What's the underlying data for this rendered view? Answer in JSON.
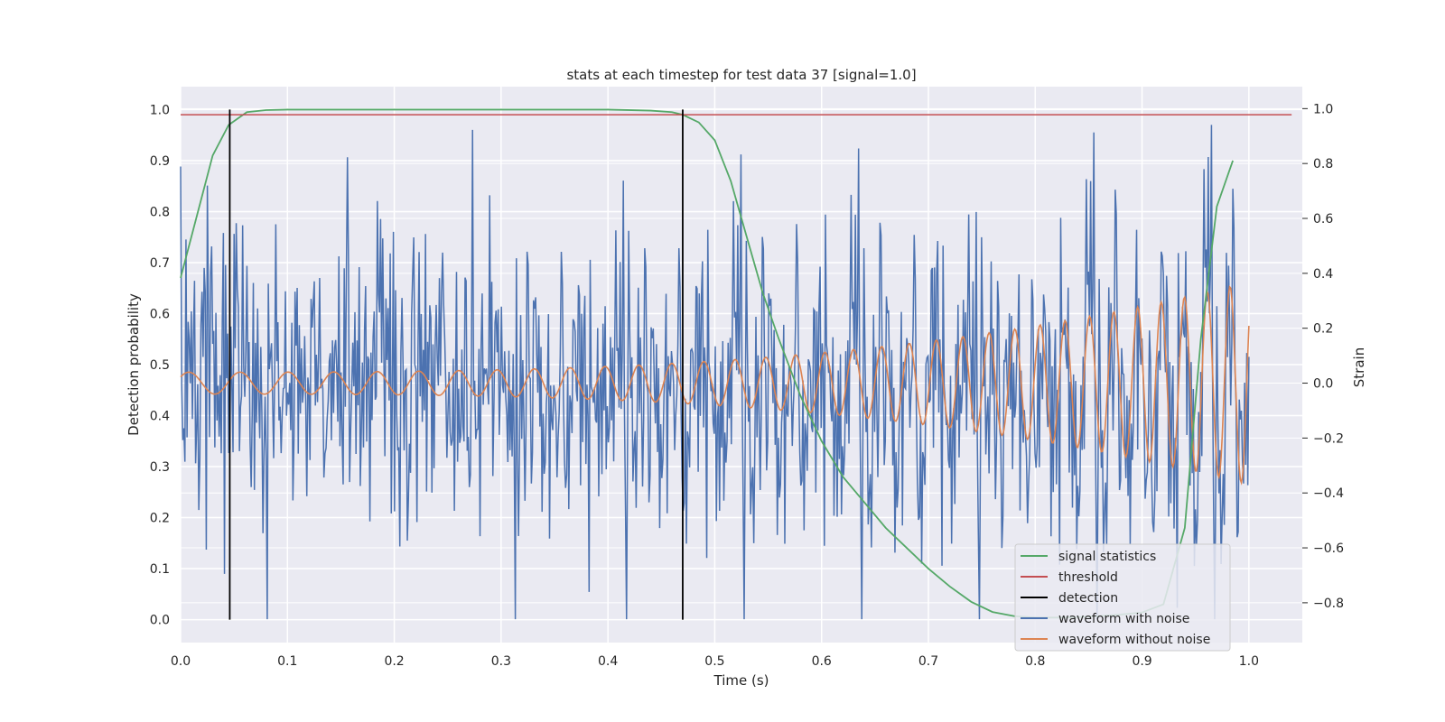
{
  "chart_data": {
    "type": "line",
    "title": "stats at each timestep for test data 37 [signal=1.0]",
    "xlabel": "Time (s)",
    "ylabel_left": "Detection probability",
    "ylabel_right": "Strain",
    "xlim": [
      0.0,
      1.05
    ],
    "ylim_left": [
      -0.045,
      1.045
    ],
    "ylim_right": [
      -0.945,
      1.08
    ],
    "x_ticks": [
      0.0,
      0.1,
      0.2,
      0.3,
      0.4,
      0.5,
      0.6,
      0.7,
      0.8,
      0.9,
      1.0
    ],
    "x_tick_labels": [
      "0.0",
      "0.1",
      "0.2",
      "0.3",
      "0.4",
      "0.5",
      "0.6",
      "0.7",
      "0.8",
      "0.9",
      "1.0"
    ],
    "y_left_ticks": [
      0.0,
      0.1,
      0.2,
      0.3,
      0.4,
      0.5,
      0.6,
      0.7,
      0.8,
      0.9,
      1.0
    ],
    "y_left_tick_labels": [
      "0.0",
      "0.1",
      "0.2",
      "0.3",
      "0.4",
      "0.5",
      "0.6",
      "0.7",
      "0.8",
      "0.9",
      "1.0"
    ],
    "y_right_ticks": [
      -0.8,
      -0.6,
      -0.4,
      -0.2,
      0.0,
      0.2,
      0.4,
      0.6,
      0.8,
      1.0
    ],
    "y_right_tick_labels": [
      "−0.8",
      "−0.6",
      "−0.4",
      "−0.2",
      "0.0",
      "0.2",
      "0.4",
      "0.6",
      "0.8",
      "1.0"
    ],
    "grid": true,
    "legend_position": "bottom-right",
    "series": [
      {
        "name": "signal statistics",
        "axis": "left",
        "color": "#55a868",
        "x": [
          0.0,
          0.015,
          0.03,
          0.045,
          0.062,
          0.08,
          0.1,
          0.2,
          0.3,
          0.4,
          0.44,
          0.46,
          0.47,
          0.485,
          0.5,
          0.515,
          0.53,
          0.545,
          0.56,
          0.58,
          0.6,
          0.62,
          0.64,
          0.66,
          0.68,
          0.7,
          0.72,
          0.74,
          0.76,
          0.78,
          0.8,
          0.82,
          0.84,
          0.86,
          0.88,
          0.9,
          0.92,
          0.94,
          0.955,
          0.97,
          0.985
        ],
        "y": [
          0.67,
          0.79,
          0.91,
          0.97,
          0.995,
          0.999,
          1.0,
          1.0,
          1.0,
          1.0,
          0.998,
          0.995,
          0.99,
          0.975,
          0.94,
          0.86,
          0.75,
          0.64,
          0.55,
          0.44,
          0.35,
          0.28,
          0.23,
          0.18,
          0.14,
          0.1,
          0.065,
          0.035,
          0.015,
          0.007,
          0.004,
          0.004,
          0.005,
          0.007,
          0.01,
          0.014,
          0.03,
          0.18,
          0.55,
          0.81,
          0.9
        ]
      },
      {
        "name": "threshold",
        "axis": "left",
        "color": "#c44e52",
        "x": [
          0.0,
          1.04
        ],
        "y": [
          0.99,
          0.99
        ]
      },
      {
        "name": "detection",
        "axis": "left",
        "color": "#000000",
        "segments": [
          {
            "x": 0.046,
            "y": [
              0.0,
              1.0
            ]
          },
          {
            "x": 0.47,
            "y": [
              0.0,
              1.0
            ]
          }
        ]
      },
      {
        "name": "waveform with noise",
        "axis": "right",
        "color": "#4c72b0",
        "noise_amplitude": 0.3,
        "n_samples": 1000,
        "x_range": [
          0.0,
          1.0
        ],
        "y_range": [
          -0.86,
          1.0
        ]
      },
      {
        "name": "waveform without noise",
        "axis": "right",
        "color": "#dd8452",
        "x_range": [
          0.0,
          1.0
        ],
        "start_amplitude": 0.04,
        "end_amplitude": 0.37,
        "start_frequency_hz": 20,
        "end_frequency_hz": 48
      }
    ]
  }
}
